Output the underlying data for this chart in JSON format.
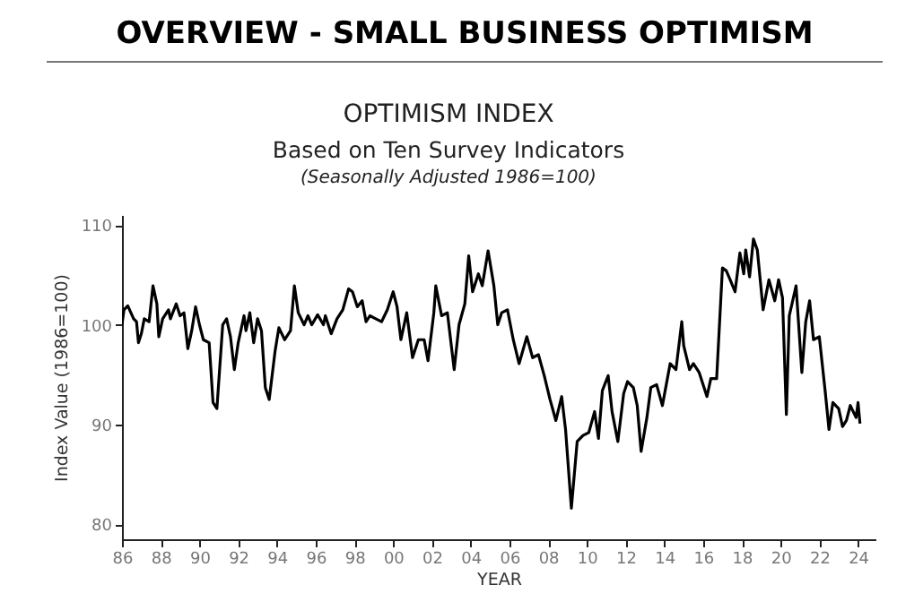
{
  "chart_data": {
    "type": "line",
    "title": "OVERVIEW - SMALL BUSINESS OPTIMISM",
    "subtitle": "OPTIMISM INDEX",
    "annotations": [
      "Based on Ten Survey Indicators",
      "(Seasonally Adjusted 1986=100)"
    ],
    "xlabel": "YEAR",
    "ylabel": "Index Value (1986=100)",
    "x": [
      1986.0,
      1986.1,
      1986.3,
      1986.6,
      1986.75,
      1986.85,
      1987.0,
      1987.15,
      1987.4,
      1987.6,
      1987.8,
      1987.9,
      1988.1,
      1988.4,
      1988.5,
      1988.8,
      1989.0,
      1989.2,
      1989.4,
      1989.6,
      1989.8,
      1990.0,
      1990.2,
      1990.5,
      1990.7,
      1990.9,
      1991.2,
      1991.4,
      1991.6,
      1991.8,
      1992.0,
      1992.3,
      1992.4,
      1992.6,
      1992.8,
      1993.0,
      1993.2,
      1993.4,
      1993.6,
      1993.9,
      1994.1,
      1994.4,
      1994.7,
      1994.9,
      1995.1,
      1995.4,
      1995.6,
      1995.8,
      1996.1,
      1996.4,
      1996.5,
      1996.8,
      1997.1,
      1997.4,
      1997.7,
      1997.9,
      1998.15,
      1998.4,
      1998.6,
      1998.8,
      1999.1,
      1999.4,
      1999.7,
      2000.0,
      2000.2,
      2000.4,
      2000.7,
      2001.0,
      2001.3,
      2001.6,
      2001.8,
      2002.1,
      2002.2,
      2002.5,
      2002.8,
      2003.15,
      2003.4,
      2003.7,
      2003.9,
      2004.1,
      2004.4,
      2004.6,
      2004.9,
      2005.2,
      2005.4,
      2005.6,
      2005.9,
      2006.2,
      2006.5,
      2006.9,
      2007.2,
      2007.5,
      2007.8,
      2008.1,
      2008.4,
      2008.7,
      2008.9,
      2009.2,
      2009.5,
      2009.8,
      2010.1,
      2010.4,
      2010.6,
      2010.8,
      2011.1,
      2011.3,
      2011.6,
      2011.9,
      2012.1,
      2012.4,
      2012.6,
      2012.8,
      2013.1,
      2013.3,
      2013.6,
      2013.9,
      2014.1,
      2014.3,
      2014.6,
      2014.9,
      2015.0,
      2015.3,
      2015.5,
      2015.8,
      2016.2,
      2016.4,
      2016.7,
      2017.0,
      2017.2,
      2017.4,
      2017.65,
      2017.9,
      2018.1,
      2018.2,
      2018.4,
      2018.6,
      2018.8,
      2019.1,
      2019.4,
      2019.7,
      2019.9,
      2020.1,
      2020.3,
      2020.45,
      2020.8,
      2021.1,
      2021.3,
      2021.5,
      2021.7,
      2022.0,
      2022.3,
      2022.5,
      2022.7,
      2023.0,
      2023.2,
      2023.4,
      2023.6,
      2023.9,
      2024.0,
      2024.1
    ],
    "series": [
      {
        "color": "#000000",
        "values": [
          100,
          101.5,
          101.9,
          100.6,
          100.3,
          98.2,
          99.1,
          100.6,
          100.3,
          103.9,
          102.1,
          98.8,
          100.6,
          101.5,
          100.6,
          102.1,
          100.9,
          101.2,
          97.6,
          99.4,
          101.8,
          100,
          98.5,
          98.2,
          92.2,
          91.6,
          100,
          100.6,
          98.8,
          95.5,
          98.2,
          100.9,
          99.4,
          101.2,
          98.2,
          100.6,
          99.4,
          93.7,
          92.5,
          97.3,
          99.7,
          98.5,
          99.4,
          103.9,
          101.2,
          100,
          100.9,
          100,
          101.0,
          100,
          100.9,
          99.1,
          100.6,
          101.5,
          103.6,
          103.3,
          101.8,
          102.4,
          100.3,
          100.9,
          100.6,
          100.3,
          101.5,
          103.3,
          101.8,
          98.5,
          101.2,
          96.7,
          98.5,
          98.5,
          96.4,
          101.2,
          103.9,
          100.9,
          101.2,
          95.5,
          100,
          102.1,
          106.9,
          103.3,
          105.1,
          103.9,
          107.4,
          103.9,
          100,
          101.2,
          101.5,
          98.5,
          96.1,
          98.8,
          96.7,
          97.0,
          94.9,
          92.5,
          90.4,
          92.8,
          89.5,
          81.6,
          88.3,
          88.9,
          89.2,
          91.3,
          88.6,
          93.4,
          94.9,
          91.3,
          88.3,
          93.1,
          94.3,
          93.7,
          91.9,
          87.3,
          90.7,
          93.7,
          94.0,
          91.9,
          94.0,
          96.1,
          95.5,
          100.3,
          97.9,
          95.5,
          96.1,
          95.2,
          92.8,
          94.6,
          94.6,
          105.7,
          105.4,
          104.5,
          103.3,
          107.2,
          105.1,
          107.5,
          104.8,
          108.6,
          107.5,
          101.5,
          104.5,
          102.4,
          104.5,
          102.7,
          91.0,
          100.9,
          103.9,
          95.2,
          100.3,
          102.4,
          98.5,
          98.8,
          93.4,
          89.5,
          92.2,
          91.6,
          89.8,
          90.4,
          91.9,
          90.7,
          92.2,
          90.1
        ]
      }
    ],
    "xlim": [
      1986,
      2024.9
    ],
    "ylim": [
      78.5,
      111
    ],
    "xticks": [
      {
        "value": 1986,
        "label": "86"
      },
      {
        "value": 1988,
        "label": "88"
      },
      {
        "value": 1990,
        "label": "90"
      },
      {
        "value": 1992,
        "label": "92"
      },
      {
        "value": 1994,
        "label": "94"
      },
      {
        "value": 1996,
        "label": "96"
      },
      {
        "value": 1998,
        "label": "98"
      },
      {
        "value": 2000,
        "label": "00"
      },
      {
        "value": 2002,
        "label": "02"
      },
      {
        "value": 2004,
        "label": "04"
      },
      {
        "value": 2006,
        "label": "06"
      },
      {
        "value": 2008,
        "label": "08"
      },
      {
        "value": 2010,
        "label": "10"
      },
      {
        "value": 2012,
        "label": "12"
      },
      {
        "value": 2014,
        "label": "14"
      },
      {
        "value": 2016,
        "label": "16"
      },
      {
        "value": 2018,
        "label": "18"
      },
      {
        "value": 2020,
        "label": "20"
      },
      {
        "value": 2022,
        "label": "22"
      },
      {
        "value": 2024,
        "label": "24"
      }
    ],
    "yticks": [
      80,
      90,
      100,
      110
    ],
    "grid": false,
    "marker": "none",
    "line_style": "solid"
  }
}
